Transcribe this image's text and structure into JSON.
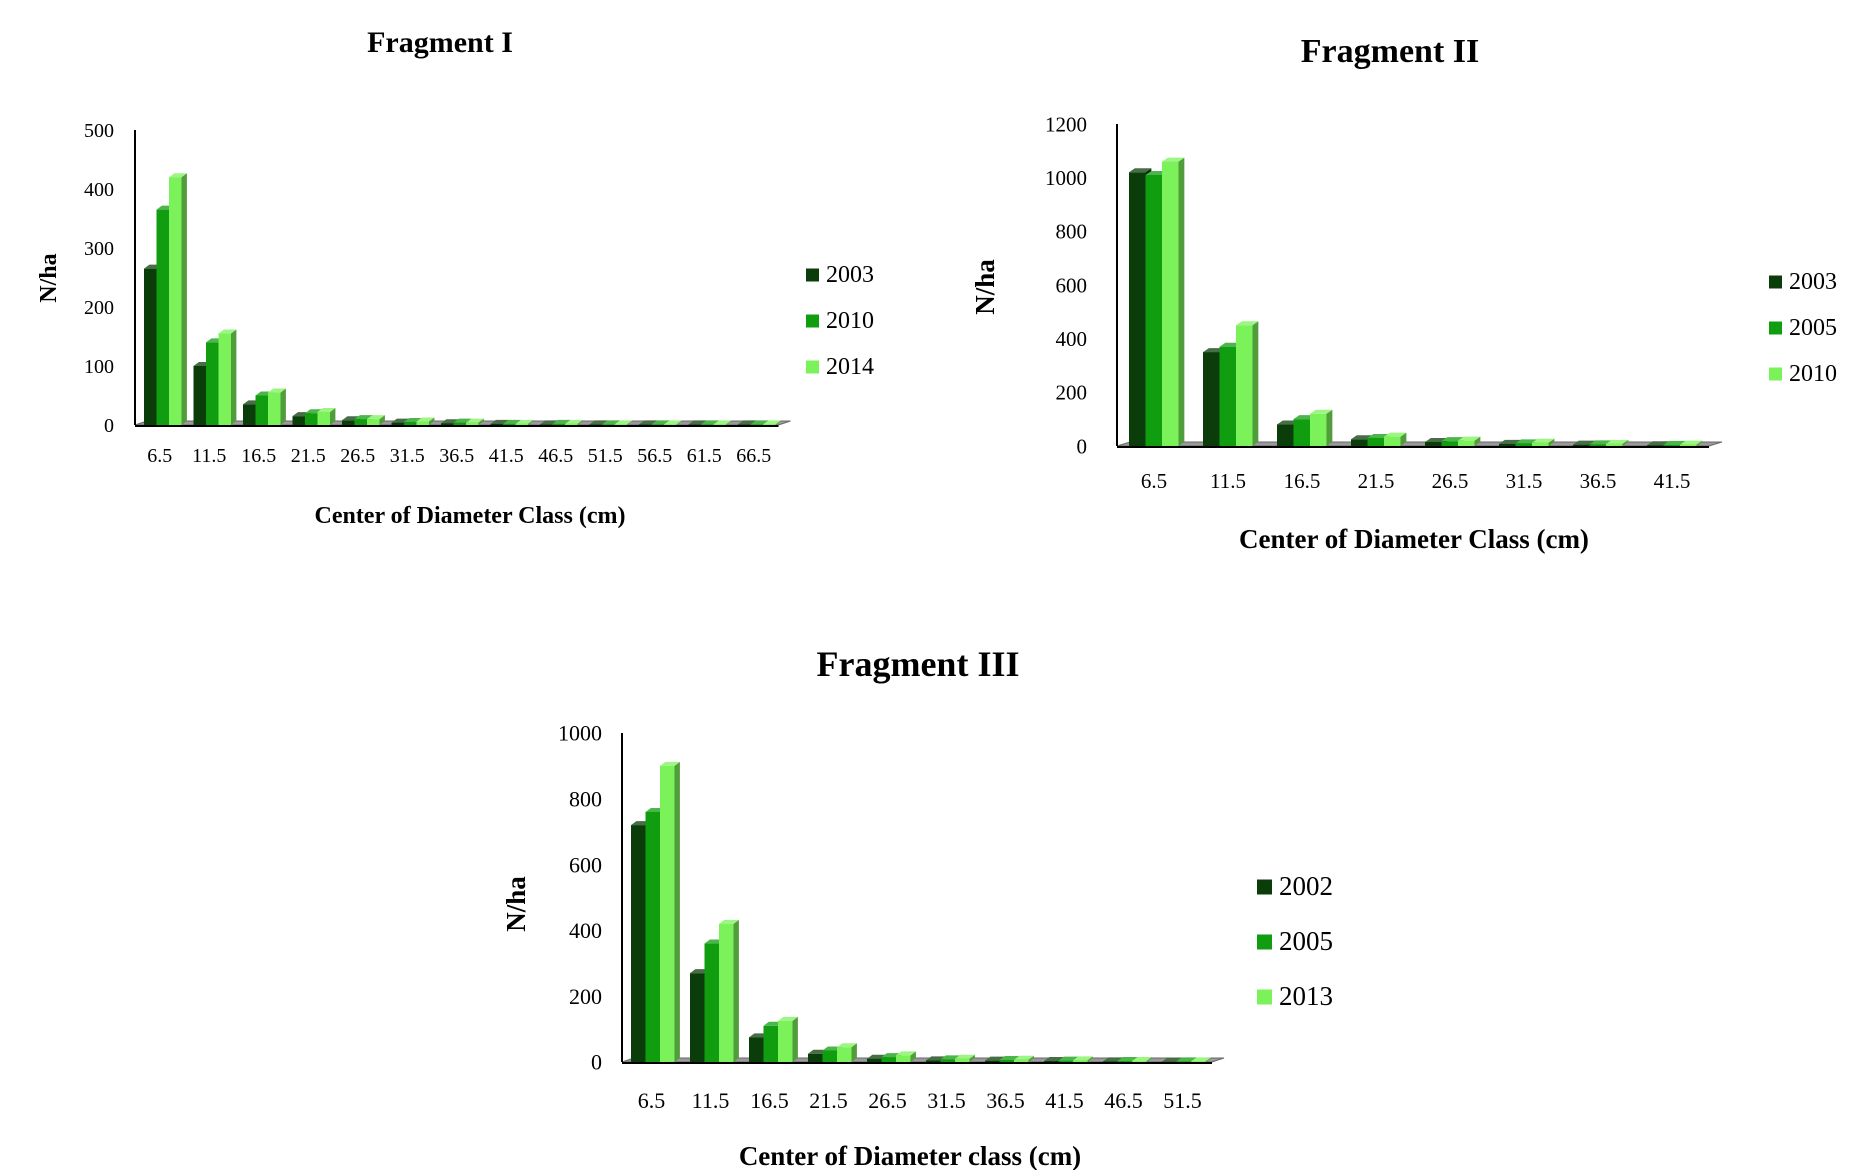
{
  "series_colors": [
    "#0b3d0b",
    "#109d10",
    "#7cf25a"
  ],
  "chart_data": [
    {
      "type": "bar",
      "title": "Fragment  I",
      "xlabel": "Center of Diameter Class (cm)",
      "ylabel": "N/ha",
      "ylim": [
        0,
        500
      ],
      "yticks": [
        "0",
        "100",
        "200",
        "300",
        "400",
        "500"
      ],
      "categories": [
        "6.5",
        "11.5",
        "16.5",
        "21.5",
        "26.5",
        "31.5",
        "36.5",
        "41.5",
        "46.5",
        "51.5",
        "56.5",
        "61.5",
        "66.5"
      ],
      "legend_position": "right",
      "series": [
        {
          "name": "2003",
          "values": [
            265,
            100,
            35,
            15,
            8,
            4,
            3,
            2,
            1,
            1,
            1,
            1,
            1
          ]
        },
        {
          "name": "2010",
          "values": [
            365,
            140,
            50,
            20,
            10,
            5,
            4,
            2,
            2,
            1,
            1,
            1,
            1
          ]
        },
        {
          "name": "2014",
          "values": [
            420,
            155,
            55,
            22,
            10,
            6,
            4,
            2,
            2,
            1,
            1,
            1,
            1
          ]
        }
      ]
    },
    {
      "type": "bar",
      "title": "Fragment  II",
      "xlabel": "Center of Diameter Class (cm)",
      "ylabel": "N/ha",
      "ylim": [
        0,
        1200
      ],
      "yticks": [
        "0",
        "200",
        "400",
        "600",
        "800",
        "1000",
        "1200"
      ],
      "categories": [
        "6.5",
        "11.5",
        "16.5",
        "21.5",
        "26.5",
        "31.5",
        "36.5",
        "41.5"
      ],
      "legend_position": "right",
      "series": [
        {
          "name": "2003",
          "values": [
            1020,
            350,
            80,
            25,
            15,
            8,
            5,
            3
          ]
        },
        {
          "name": "2005",
          "values": [
            1010,
            370,
            100,
            30,
            18,
            10,
            6,
            4
          ]
        },
        {
          "name": "2010",
          "values": [
            1060,
            450,
            120,
            35,
            20,
            12,
            8,
            5
          ]
        }
      ]
    },
    {
      "type": "bar",
      "title": "Fragment  III",
      "xlabel": "Center of Diameter class (cm)",
      "ylabel": "N/ha",
      "ylim": [
        0,
        1000
      ],
      "yticks": [
        "0",
        "200",
        "400",
        "600",
        "800",
        "1000"
      ],
      "categories": [
        "6.5",
        "11.5",
        "16.5",
        "21.5",
        "26.5",
        "31.5",
        "36.5",
        "41.5",
        "46.5",
        "51.5"
      ],
      "legend_position": "right",
      "series": [
        {
          "name": "2002",
          "values": [
            720,
            270,
            75,
            25,
            10,
            5,
            4,
            3,
            2,
            1
          ]
        },
        {
          "name": "2005",
          "values": [
            760,
            360,
            110,
            35,
            15,
            8,
            6,
            4,
            3,
            2
          ]
        },
        {
          "name": "2013",
          "values": [
            900,
            420,
            125,
            45,
            20,
            10,
            7,
            5,
            3,
            2
          ]
        }
      ]
    }
  ]
}
